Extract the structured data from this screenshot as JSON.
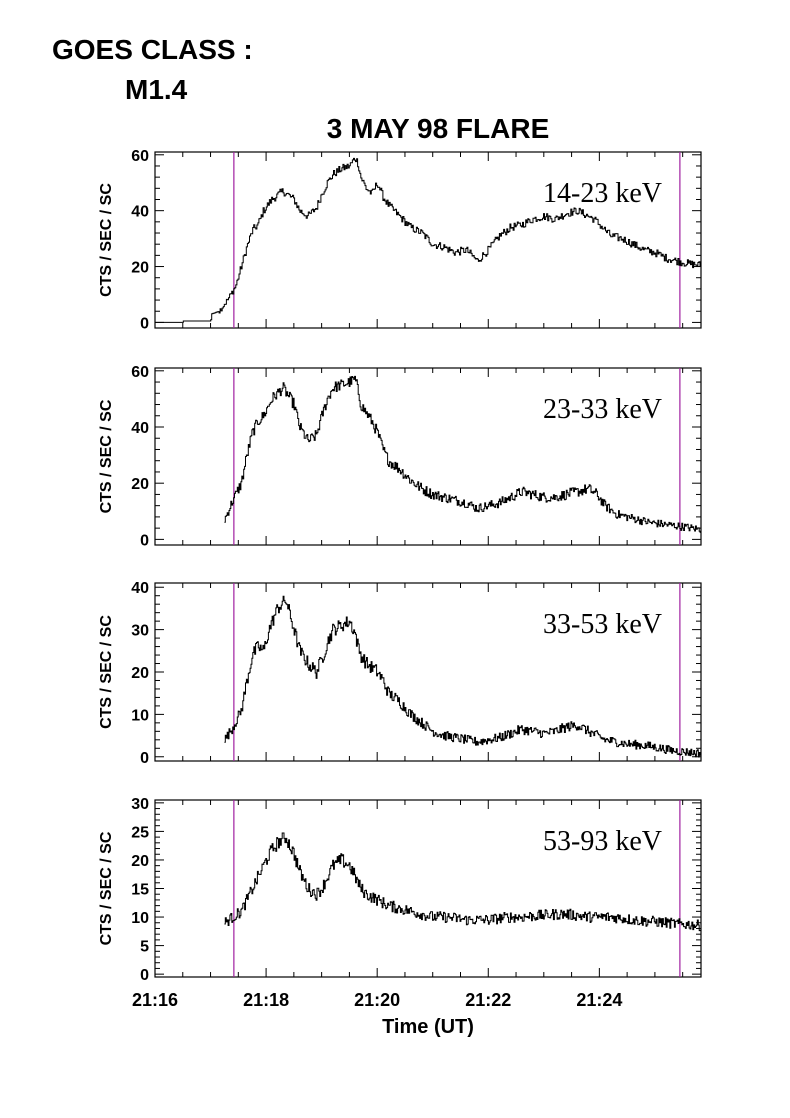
{
  "goes": {
    "label": "GOES CLASS :",
    "value": "M1.4"
  },
  "chart_data": {
    "type": "line",
    "title": "3 MAY 98 FLARE",
    "xlabel": "Time (UT)",
    "x_units": "minutes after 21:16 UT",
    "xlim": [
      0,
      9.83
    ],
    "x_ticks": [
      0,
      2,
      4,
      6,
      8
    ],
    "x_tick_labels": [
      "21:16",
      "21:18",
      "21:20",
      "21:22",
      "21:24"
    ],
    "markers": {
      "x": [
        1.42,
        9.45
      ],
      "color": "#a020a0"
    },
    "panels": [
      {
        "ylabel": "CTS / SEC / SC",
        "band": "14-23 keV",
        "ylim": [
          -2,
          61
        ],
        "yticks": [
          0,
          20,
          40,
          60
        ],
        "noise": 1.4,
        "x": [
          0.0,
          0.5,
          0.51,
          1.0,
          1.01,
          1.15,
          1.3,
          1.45,
          1.55,
          1.65,
          1.75,
          1.85,
          1.95,
          2.1,
          2.3,
          2.5,
          2.6,
          2.75,
          2.9,
          3.0,
          3.1,
          3.2,
          3.35,
          3.5,
          3.6,
          3.65,
          3.7,
          3.8,
          3.9,
          4.0,
          4.1,
          4.2,
          4.4,
          4.6,
          4.8,
          5.0,
          5.2,
          5.4,
          5.6,
          5.8,
          6.0,
          6.2,
          6.4,
          6.6,
          6.8,
          7.0,
          7.2,
          7.4,
          7.6,
          7.8,
          7.9,
          8.0,
          8.2,
          8.4,
          8.6,
          8.8,
          9.0,
          9.2,
          9.4,
          9.6,
          9.83
        ],
        "y": [
          0,
          0,
          0.5,
          0.5,
          3,
          4,
          8,
          13,
          20,
          27,
          33,
          35,
          40,
          44,
          47,
          44,
          40,
          38,
          41,
          46,
          50,
          53,
          55,
          56,
          59,
          57,
          52,
          48,
          46,
          50,
          45,
          42,
          38,
          34,
          32,
          28,
          27,
          25,
          26,
          22,
          26,
          31,
          34,
          35,
          37,
          38,
          37,
          39,
          40,
          38,
          37,
          35,
          31,
          30,
          28,
          26,
          25,
          23,
          22,
          21,
          20.5
        ],
        "start": 0.0
      },
      {
        "ylabel": "CTS / SEC / SC",
        "band": "23-33 keV",
        "ylim": [
          -2,
          61
        ],
        "yticks": [
          0,
          20,
          40,
          60
        ],
        "noise": 2.0,
        "x": [
          1.25,
          1.4,
          1.55,
          1.65,
          1.75,
          1.85,
          1.95,
          2.1,
          2.3,
          2.5,
          2.6,
          2.75,
          2.9,
          3.0,
          3.1,
          3.2,
          3.35,
          3.5,
          3.6,
          3.65,
          3.7,
          3.8,
          3.9,
          4.0,
          4.1,
          4.2,
          4.4,
          4.6,
          4.8,
          5.0,
          5.2,
          5.4,
          5.6,
          5.8,
          6.0,
          6.2,
          6.4,
          6.6,
          6.8,
          7.0,
          7.2,
          7.4,
          7.6,
          7.8,
          7.95,
          8.1,
          8.3,
          8.5,
          8.7,
          8.9,
          9.1,
          9.3,
          9.5,
          9.83
        ],
        "y": [
          7,
          14,
          20,
          30,
          38,
          42,
          44,
          50,
          54,
          48,
          40,
          35,
          37,
          44,
          50,
          54,
          55,
          56,
          57,
          53,
          48,
          45,
          42,
          38,
          32,
          28,
          25,
          21,
          18,
          16,
          15,
          14,
          13,
          11,
          12,
          13,
          15,
          17,
          16,
          15,
          15,
          16,
          17,
          18,
          16,
          12,
          9,
          8,
          7,
          6,
          5.5,
          5,
          4.5,
          3.5
        ],
        "start": 1.25
      },
      {
        "ylabel": "CTS / SEC / SC",
        "band": "33-53 keV",
        "ylim": [
          -1,
          41
        ],
        "yticks": [
          0,
          10,
          20,
          30,
          40
        ],
        "noise": 1.6,
        "x": [
          1.25,
          1.4,
          1.55,
          1.65,
          1.75,
          1.85,
          1.95,
          2.05,
          2.2,
          2.35,
          2.5,
          2.6,
          2.75,
          2.9,
          3.0,
          3.1,
          3.2,
          3.35,
          3.5,
          3.6,
          3.65,
          3.7,
          3.8,
          3.9,
          4.0,
          4.1,
          4.2,
          4.4,
          4.6,
          4.8,
          5.0,
          5.2,
          5.4,
          5.6,
          5.8,
          6.0,
          6.2,
          6.4,
          6.6,
          6.8,
          7.0,
          7.2,
          7.4,
          7.6,
          7.8,
          7.95,
          8.1,
          8.3,
          8.5,
          8.7,
          8.9,
          9.1,
          9.3,
          9.5,
          9.83
        ],
        "y": [
          4,
          7,
          11,
          18,
          24,
          26,
          25,
          30,
          35,
          37,
          30,
          25,
          22,
          20,
          23,
          27,
          30,
          31,
          32,
          29,
          26,
          24,
          22,
          21,
          20,
          18,
          15,
          13,
          10,
          8,
          6,
          5,
          4.5,
          4,
          3.5,
          4,
          4.5,
          5.5,
          6.5,
          6,
          5.5,
          6,
          7,
          7.5,
          6,
          5,
          4,
          3.5,
          3,
          2.8,
          2.5,
          2,
          1.5,
          1.2,
          0.8
        ],
        "start": 1.25
      },
      {
        "ylabel": "CTS / SEC / SC",
        "band": "53-93 keV",
        "ylim": [
          -0.5,
          30.5
        ],
        "yticks": [
          0,
          5,
          10,
          15,
          20,
          25,
          30
        ],
        "noise": 1.2,
        "x": [
          1.25,
          1.4,
          1.55,
          1.65,
          1.75,
          1.85,
          1.95,
          2.05,
          2.2,
          2.35,
          2.5,
          2.6,
          2.75,
          2.9,
          3.0,
          3.1,
          3.2,
          3.35,
          3.5,
          3.6,
          3.65,
          3.7,
          3.8,
          3.9,
          4.0,
          4.1,
          4.2,
          4.4,
          4.6,
          4.8,
          5.0,
          5.2,
          5.4,
          5.6,
          5.8,
          6.0,
          6.2,
          6.4,
          6.6,
          6.8,
          7.0,
          7.2,
          7.4,
          7.6,
          7.8,
          8.0,
          8.2,
          8.4,
          8.6,
          8.8,
          9.0,
          9.2,
          9.4,
          9.6,
          9.83
        ],
        "y": [
          9,
          10,
          11,
          13,
          15,
          17,
          19,
          21,
          23,
          24,
          21,
          18,
          15,
          14,
          15,
          17,
          19,
          20,
          19,
          17,
          16,
          15,
          14,
          13.5,
          13,
          12.5,
          12,
          11.5,
          11,
          10.5,
          10,
          10,
          9.8,
          9.5,
          9.5,
          9.5,
          9.8,
          10,
          10,
          10.2,
          10.3,
          10.5,
          10.5,
          10.3,
          10,
          10,
          10,
          9.8,
          9.5,
          9.3,
          9.2,
          9.0,
          8.8,
          8.7,
          8.5
        ],
        "start": 1.25
      }
    ]
  }
}
